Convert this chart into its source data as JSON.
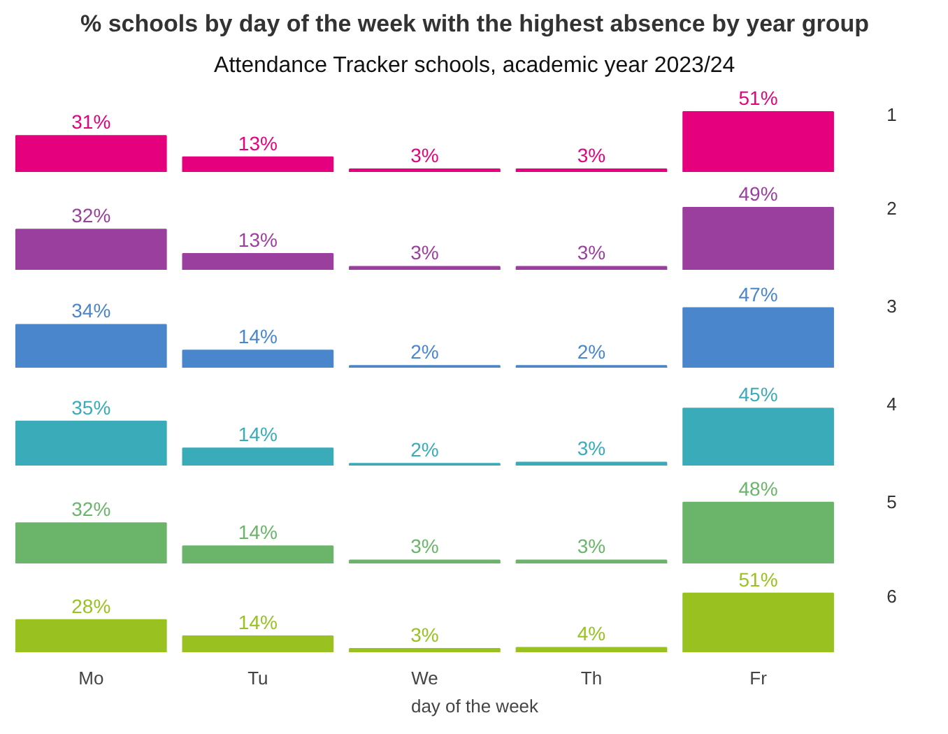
{
  "chart_data": [
    {
      "type": "bar",
      "title": "% schools by day of the week with the highest absence by year group",
      "subtitle": "Attendance Tracker schools, academic year 2023/24",
      "tick_labels": false,
      "series": [
        {
          "name": "1",
          "color": "#e5007d",
          "values": [
            31,
            13,
            3,
            3,
            51
          ],
          "value_labels": [
            "31%",
            "13%",
            "3%",
            "3%",
            "51%"
          ]
        }
      ]
    },
    {
      "type": "bar",
      "tick_labels": false,
      "series": [
        {
          "name": "2",
          "color": "#9b3f9f",
          "values": [
            32,
            13,
            3,
            3,
            49
          ],
          "value_labels": [
            "32%",
            "13%",
            "3%",
            "3%",
            "49%"
          ]
        }
      ]
    },
    {
      "type": "bar",
      "tick_labels": false,
      "series": [
        {
          "name": "3",
          "color": "#4a86cc",
          "values": [
            34,
            14,
            2,
            2,
            47
          ],
          "value_labels": [
            "34%",
            "14%",
            "2%",
            "2%",
            "47%"
          ]
        }
      ]
    },
    {
      "type": "bar",
      "tick_labels": false,
      "series": [
        {
          "name": "4",
          "color": "#3aabb8",
          "values": [
            35,
            14,
            2,
            3,
            45
          ],
          "value_labels": [
            "35%",
            "14%",
            "2%",
            "3%",
            "45%"
          ]
        }
      ]
    },
    {
      "type": "bar",
      "tick_labels": false,
      "series": [
        {
          "name": "5",
          "color": "#6bb56b",
          "values": [
            32,
            14,
            3,
            3,
            48
          ],
          "value_labels": [
            "32%",
            "14%",
            "3%",
            "3%",
            "48%"
          ]
        }
      ]
    },
    {
      "type": "bar",
      "xlabel": "day of the week",
      "categories": [
        "Mo",
        "Tu",
        "We",
        "Th",
        "Fr"
      ],
      "tick_labels": "x",
      "series": [
        {
          "name": "6",
          "color": "#99c221",
          "values": [
            28,
            14,
            3,
            4,
            51
          ],
          "value_labels": [
            "28%",
            "14%",
            "3%",
            "4%",
            "51%"
          ]
        }
      ]
    }
  ]
}
